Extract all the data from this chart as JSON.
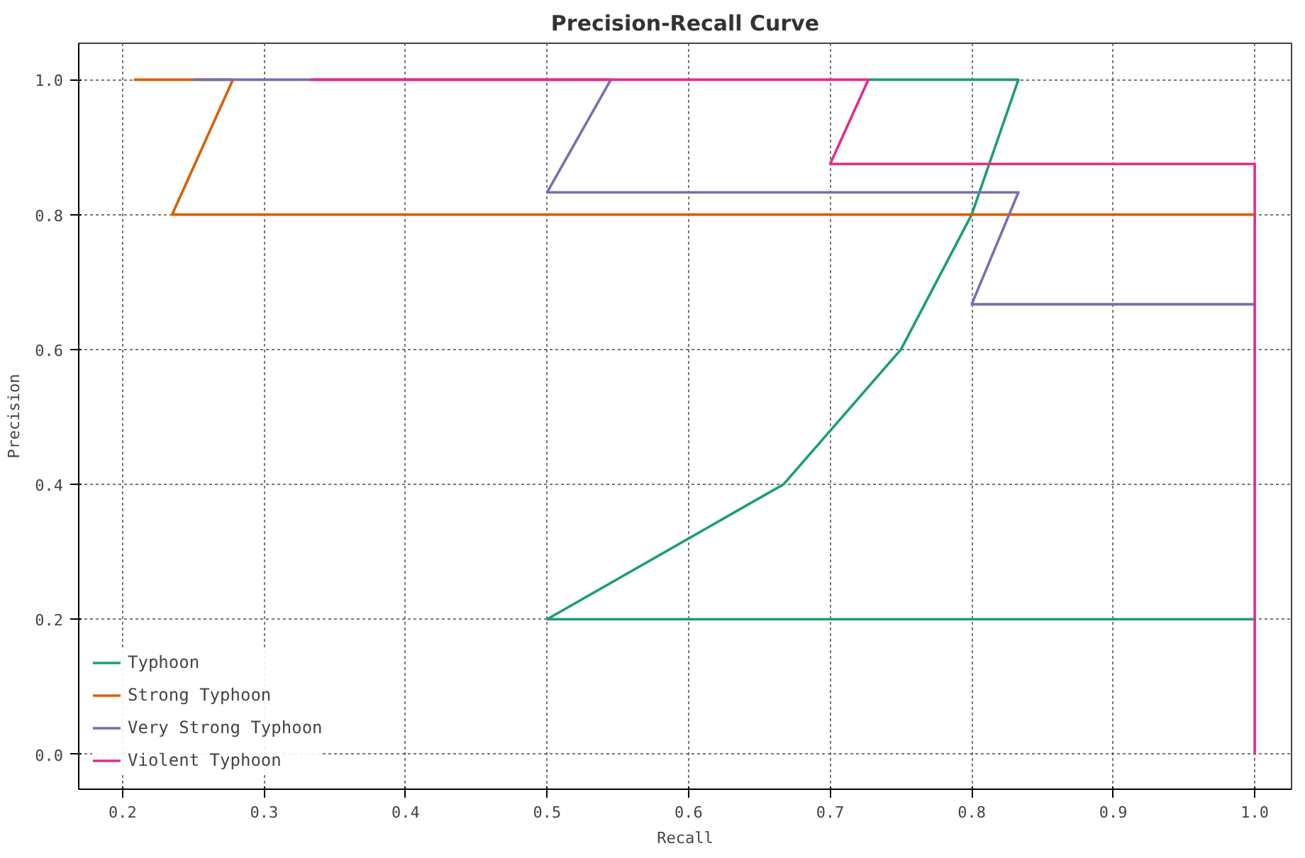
{
  "chart_data": {
    "type": "line",
    "title": "Precision-Recall Curve",
    "xlabel": "Recall",
    "ylabel": "Precision",
    "xlim": [
      0.169,
      1.026
    ],
    "ylim": [
      -0.052,
      1.054
    ],
    "xticks": [
      {
        "value": 0.2,
        "label": "0.2"
      },
      {
        "value": 0.3,
        "label": "0.3"
      },
      {
        "value": 0.4,
        "label": "0.4"
      },
      {
        "value": 0.5,
        "label": "0.5"
      },
      {
        "value": 0.6,
        "label": "0.6"
      },
      {
        "value": 0.7,
        "label": "0.7"
      },
      {
        "value": 0.8,
        "label": "0.8"
      },
      {
        "value": 0.9,
        "label": "0.9"
      },
      {
        "value": 1,
        "label": "1.0"
      }
    ],
    "yticks": [
      {
        "value": 0,
        "label": "0.0"
      },
      {
        "value": 0.2,
        "label": "0.2"
      },
      {
        "value": 0.4,
        "label": "0.4"
      },
      {
        "value": 0.6,
        "label": "0.6"
      },
      {
        "value": 0.8,
        "label": "0.8"
      },
      {
        "value": 1,
        "label": "1.0"
      }
    ],
    "grid": true,
    "legend": "bottom left",
    "line_style": "solid",
    "series": [
      {
        "name": "Typhoon",
        "color": "#1b9e77",
        "x": [
          1.0,
          0.5,
          0.667,
          0.75,
          0.8,
          0.833,
          0.727
        ],
        "values": [
          0.2,
          0.2,
          0.4,
          0.6,
          0.8,
          1.0,
          1.0
        ]
      },
      {
        "name": "Strong Typhoon",
        "color": "#d95f02",
        "x": [
          1.0,
          0.235,
          0.278,
          0.208
        ],
        "values": [
          0.8,
          0.8,
          1.0,
          1.0
        ]
      },
      {
        "name": "Very Strong Typhoon",
        "color": "#7570b3",
        "x": [
          1.0,
          0.8,
          0.833,
          0.5,
          0.545,
          0.25
        ],
        "values": [
          0.667,
          0.667,
          0.833,
          0.833,
          1.0,
          1.0
        ]
      },
      {
        "name": "Violent Typhoon",
        "color": "#e7298a",
        "x": [
          1.0,
          1.0,
          0.7,
          0.727,
          0.333
        ],
        "values": [
          0.0,
          0.875,
          0.875,
          1.0,
          1.0
        ]
      }
    ]
  }
}
